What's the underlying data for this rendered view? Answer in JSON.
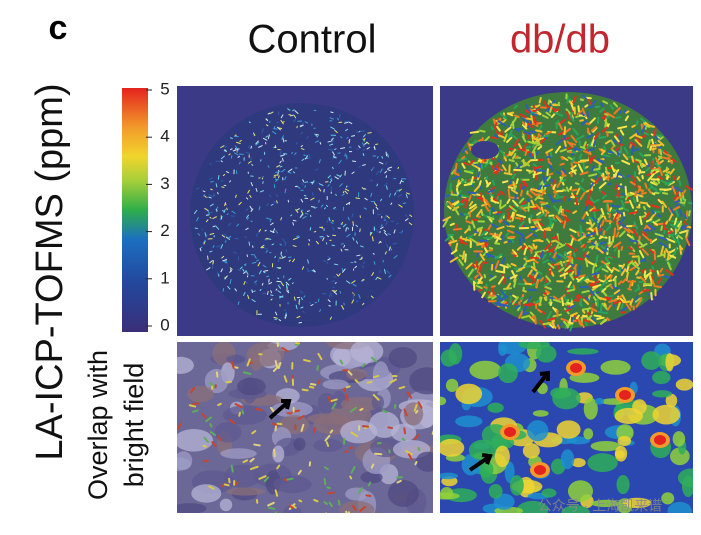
{
  "panel_label": "c",
  "columns": [
    "Control",
    "db/db"
  ],
  "row_labels": {
    "main": "LA-ICP-TOFMS (ppm)",
    "overlap": [
      "Overlap with",
      "bright field"
    ]
  },
  "colorbar": {
    "ticks": [
      0,
      1,
      2,
      3,
      4,
      5
    ]
  },
  "watermark": "公众号 · 上海凯来谱"
}
